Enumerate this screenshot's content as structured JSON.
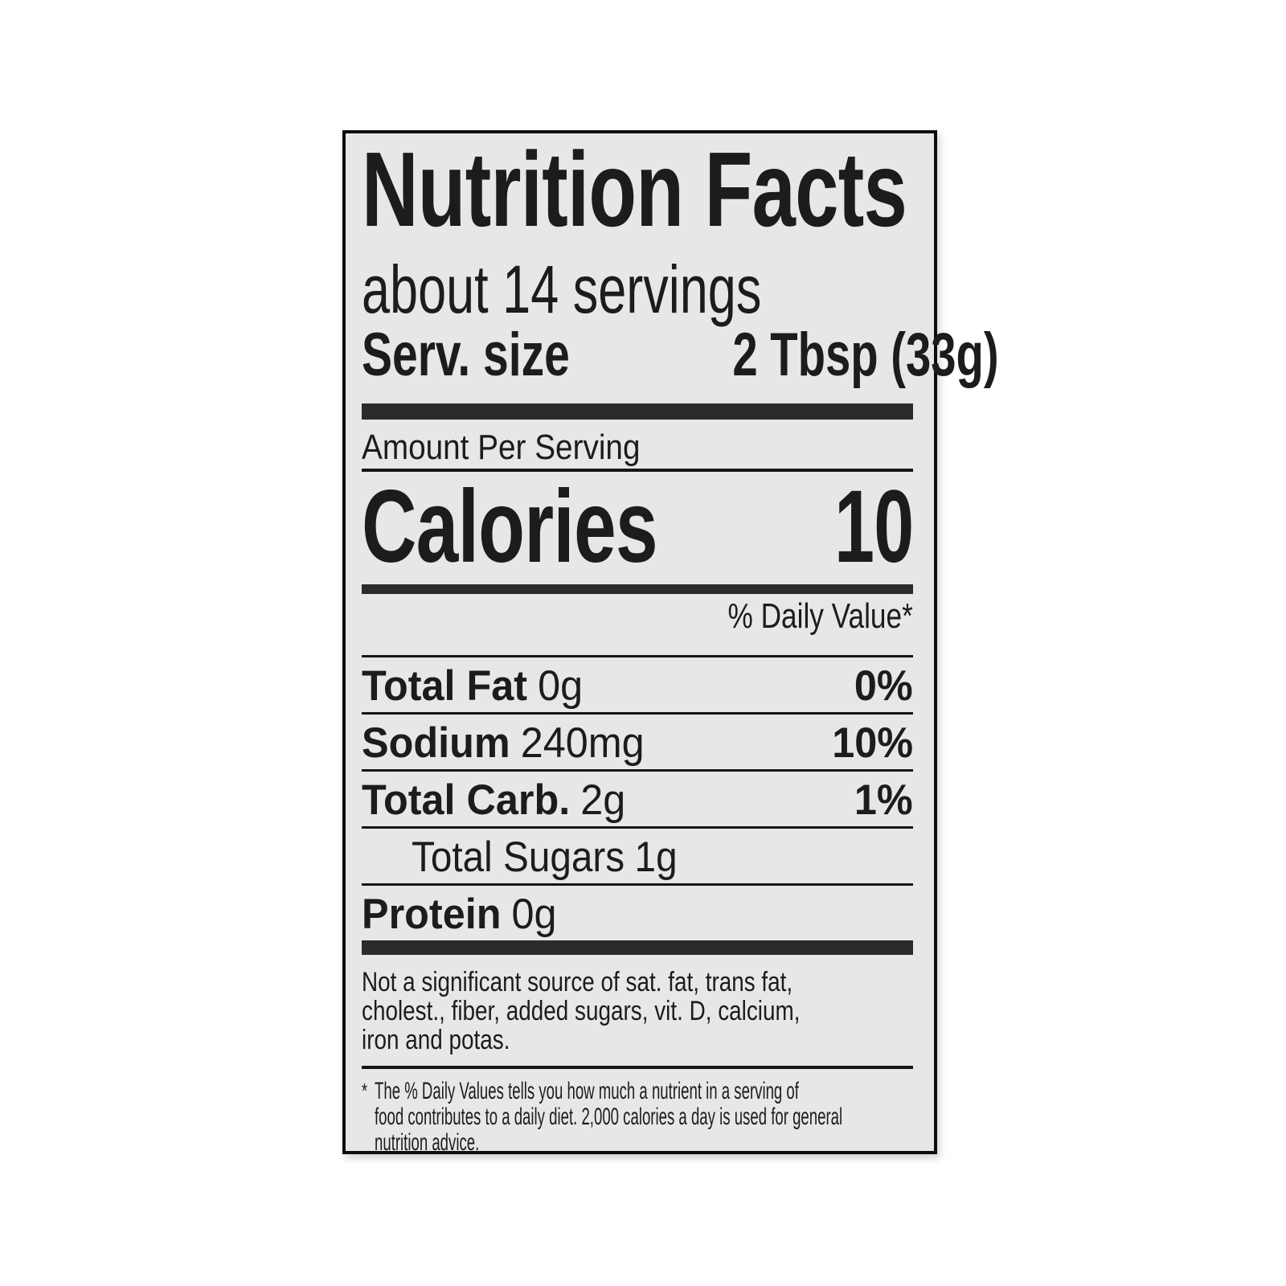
{
  "label": {
    "title": "Nutrition Facts",
    "servings": "about 14 servings",
    "serving_size_label": "Serv. size",
    "serving_size_value": "2 Tbsp (33g)",
    "amount_per_serving": "Amount Per Serving",
    "calories_label": "Calories",
    "calories_value": "10",
    "daily_value_header": "% Daily Value*",
    "nutrients": [
      {
        "name": "Total Fat",
        "amount": "0g",
        "dv": "0%"
      },
      {
        "name": "Sodium",
        "amount": "240mg",
        "dv": "10%"
      },
      {
        "name": "Total Carb.",
        "amount": "2g",
        "dv": "1%"
      },
      {
        "name": "Total Sugars",
        "amount": "1g",
        "dv": ""
      },
      {
        "name": "Protein",
        "amount": "0g",
        "dv": ""
      }
    ],
    "note_lines": [
      "Not a significant source of sat. fat, trans fat,",
      "cholest., fiber, added sugars, vit. D, calcium,",
      "iron and potas."
    ],
    "footnote_marker": "*",
    "footnote_lines": [
      "The % Daily Values tells you how much a nutrient in a serving of",
      "food contributes to a daily diet. 2,000 calories a day is used for general",
      "nutrition advice."
    ]
  },
  "colors": {
    "page-bg": "#ffffff",
    "label-bg": "#e7e7e7",
    "ink": "#1c1c1c",
    "bar": "#2b2b2b",
    "rule": "#161616"
  }
}
